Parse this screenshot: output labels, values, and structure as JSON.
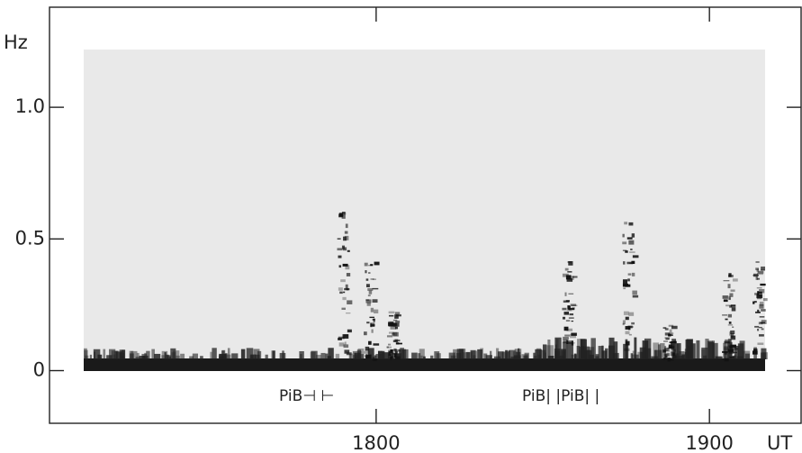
{
  "chart_data": {
    "type": "spectrogram",
    "y_label": "Hz",
    "x_label": "UT",
    "ylim": [
      -0.2,
      1.38
    ],
    "yticks": [
      0,
      0.5,
      {
        "value": 1,
        "label": "1.0"
      }
    ],
    "xlim": [
      1702,
      1927.5
    ],
    "xticks": [
      1800,
      1900
    ],
    "annotations": [
      "PiB⊣ ⊢",
      "PiB|  |PiB| |"
    ]
  }
}
